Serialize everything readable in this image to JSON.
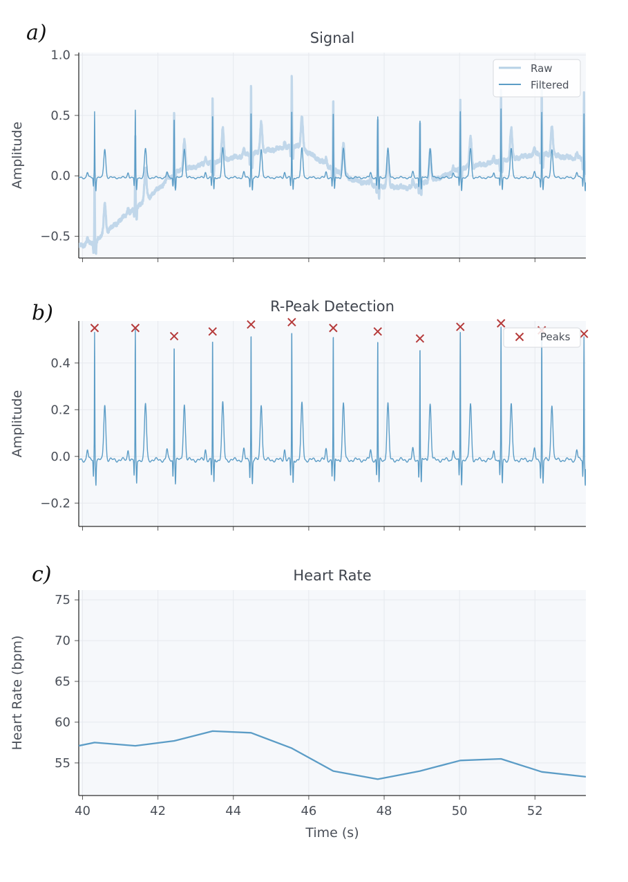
{
  "colors": {
    "raw": "#b7d1e6",
    "filtered": "#5b9cc6",
    "peaks": "#b53a3a",
    "plot_bg": "#f6f8fb",
    "grid": "#e6e9ee"
  },
  "chart_data": [
    {
      "panel_label": "a)",
      "type": "line",
      "title": "Signal",
      "xlabel": "",
      "ylabel": "Amplitude",
      "xlim": [
        39.9,
        53.35
      ],
      "ylim": [
        -0.68,
        1.02
      ],
      "yticks": [
        {
          "v": -0.5,
          "label": "−0.5"
        },
        {
          "v": 0.0,
          "label": "0.0"
        },
        {
          "v": 0.5,
          "label": "0.5"
        },
        {
          "v": 1.0,
          "label": "1.0"
        }
      ],
      "grid": true,
      "legend": {
        "position": "top-right",
        "entries": [
          "Raw",
          "Filtered"
        ]
      },
      "series": [
        {
          "name": "Raw",
          "description": "raw ECG with baseline wander",
          "baseline_points": [
            [
              39.9,
              -0.56
            ],
            [
              40.3,
              -0.54
            ],
            [
              41.0,
              -0.35
            ],
            [
              41.8,
              -0.15
            ],
            [
              42.5,
              0.05
            ],
            [
              43.3,
              0.12
            ],
            [
              44.2,
              0.18
            ],
            [
              45.0,
              0.23
            ],
            [
              45.7,
              0.27
            ],
            [
              46.6,
              0.08
            ],
            [
              47.2,
              -0.02
            ],
            [
              47.9,
              -0.07
            ],
            [
              48.7,
              -0.08
            ],
            [
              49.3,
              -0.02
            ],
            [
              50.1,
              0.08
            ],
            [
              51.1,
              0.14
            ],
            [
              52.1,
              0.2
            ],
            [
              53.35,
              0.15
            ]
          ]
        },
        {
          "name": "Filtered",
          "description": "filtered ECG around 0"
        }
      ],
      "r_peaks": [
        {
          "t": 40.32,
          "amp": 0.55
        },
        {
          "t": 41.4,
          "amp": 0.55
        },
        {
          "t": 42.43,
          "amp": 0.51
        },
        {
          "t": 43.45,
          "amp": 0.53
        },
        {
          "t": 44.47,
          "amp": 0.56
        },
        {
          "t": 45.55,
          "amp": 0.57
        },
        {
          "t": 46.65,
          "amp": 0.55
        },
        {
          "t": 47.83,
          "amp": 0.53
        },
        {
          "t": 48.95,
          "amp": 0.5
        },
        {
          "t": 50.02,
          "amp": 0.55
        },
        {
          "t": 51.1,
          "amp": 0.56
        },
        {
          "t": 52.18,
          "amp": 0.54
        },
        {
          "t": 53.3,
          "amp": 0.53
        }
      ]
    },
    {
      "panel_label": "b)",
      "type": "line",
      "title": "R-Peak Detection",
      "xlabel": "",
      "ylabel": "Amplitude",
      "xlim": [
        39.9,
        53.35
      ],
      "ylim": [
        -0.3,
        0.58
      ],
      "yticks": [
        {
          "v": -0.2,
          "label": "−0.2"
        },
        {
          "v": 0.0,
          "label": "0.0"
        },
        {
          "v": 0.2,
          "label": "0.2"
        },
        {
          "v": 0.4,
          "label": "0.4"
        }
      ],
      "grid": true,
      "legend": {
        "position": "top-right",
        "entries": [
          "Peaks"
        ]
      },
      "series": [
        {
          "name": "",
          "description": "filtered ECG"
        },
        {
          "name": "Peaks",
          "type": "scatter",
          "marker": "x",
          "points": [
            [
              40.32,
              0.55
            ],
            [
              41.4,
              0.55
            ],
            [
              42.43,
              0.515
            ],
            [
              43.45,
              0.535
            ],
            [
              44.47,
              0.565
            ],
            [
              45.55,
              0.575
            ],
            [
              46.65,
              0.55
            ],
            [
              47.83,
              0.535
            ],
            [
              48.95,
              0.505
            ],
            [
              50.02,
              0.555
            ],
            [
              51.1,
              0.57
            ],
            [
              52.18,
              0.54
            ],
            [
              53.3,
              0.525
            ]
          ]
        }
      ]
    },
    {
      "panel_label": "c)",
      "type": "line",
      "title": "Heart Rate",
      "xlabel": "Time (s)",
      "ylabel": "Heart Rate (bpm)",
      "xlim": [
        39.9,
        53.35
      ],
      "ylim": [
        51.0,
        76.2
      ],
      "yticks": [
        {
          "v": 55,
          "label": "55"
        },
        {
          "v": 60,
          "label": "60"
        },
        {
          "v": 65,
          "label": "65"
        },
        {
          "v": 70,
          "label": "70"
        },
        {
          "v": 75,
          "label": "75"
        }
      ],
      "xticks": [
        {
          "v": 40,
          "label": "40"
        },
        {
          "v": 42,
          "label": "42"
        },
        {
          "v": 44,
          "label": "44"
        },
        {
          "v": 46,
          "label": "46"
        },
        {
          "v": 48,
          "label": "48"
        },
        {
          "v": 50,
          "label": "50"
        },
        {
          "v": 52,
          "label": "52"
        }
      ],
      "grid": true,
      "series": [
        {
          "name": "",
          "points": [
            [
              39.9,
              57.1
            ],
            [
              40.32,
              57.5
            ],
            [
              41.4,
              57.1
            ],
            [
              42.43,
              57.7
            ],
            [
              43.45,
              58.9
            ],
            [
              44.47,
              58.7
            ],
            [
              45.55,
              56.8
            ],
            [
              46.65,
              54.0
            ],
            [
              47.83,
              53.0
            ],
            [
              48.95,
              54.0
            ],
            [
              50.02,
              55.3
            ],
            [
              51.1,
              55.5
            ],
            [
              52.18,
              53.9
            ],
            [
              53.35,
              53.3
            ]
          ]
        }
      ]
    }
  ]
}
